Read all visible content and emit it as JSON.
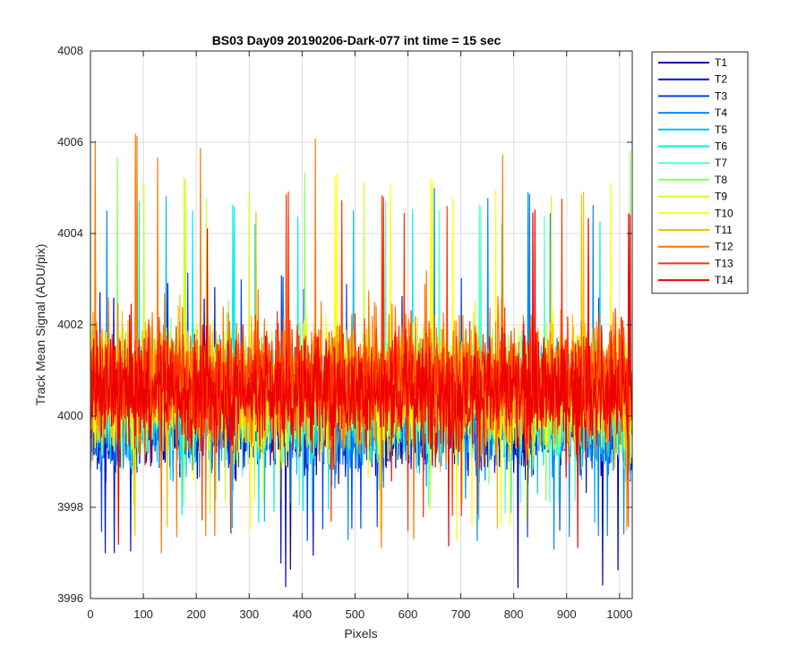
{
  "chart_data": {
    "type": "line",
    "title": "BS03 Day09 20190206-Dark-077 int time = 15 sec",
    "xlabel": "Pixels",
    "ylabel": "Track Mean Signal (ADU/pix)",
    "xlim": [
      0,
      1024
    ],
    "ylim": [
      3996,
      4008
    ],
    "xticks": [
      0,
      100,
      200,
      300,
      400,
      500,
      600,
      700,
      800,
      900,
      1000
    ],
    "yticks": [
      3996,
      3998,
      4000,
      4002,
      4004,
      4006,
      4008
    ],
    "grid": true,
    "legend_position": "outside-top-right",
    "n_points": 1024,
    "series": [
      {
        "name": "T1",
        "color": "#0000aa",
        "mean": 3999.9,
        "min": 3996.2,
        "max": 4003.0
      },
      {
        "name": "T2",
        "color": "#0010cc",
        "mean": 3999.9,
        "min": 3996.6,
        "max": 4003.0
      },
      {
        "name": "T3",
        "color": "#0044ee",
        "mean": 4000.0,
        "min": 3997.2,
        "max": 4003.2
      },
      {
        "name": "T4",
        "color": "#0088ff",
        "mean": 4000.1,
        "min": 3997.0,
        "max": 4005.1
      },
      {
        "name": "T5",
        "color": "#00bbff",
        "mean": 4000.2,
        "min": 3997.4,
        "max": 4005.1
      },
      {
        "name": "T6",
        "color": "#00eeee",
        "mean": 4000.3,
        "min": 3997.6,
        "max": 4004.8
      },
      {
        "name": "T7",
        "color": "#55ffcc",
        "mean": 4000.4,
        "min": 3997.8,
        "max": 4004.8
      },
      {
        "name": "T8",
        "color": "#88ff66",
        "mean": 4000.5,
        "min": 3997.9,
        "max": 4006.0
      },
      {
        "name": "T9",
        "color": "#ccff22",
        "mean": 4000.6,
        "min": 3997.8,
        "max": 4005.4
      },
      {
        "name": "T10",
        "color": "#ffff00",
        "mean": 4000.6,
        "min": 3997.2,
        "max": 4005.4
      },
      {
        "name": "T11",
        "color": "#ffbb00",
        "mean": 4000.7,
        "min": 3997.2,
        "max": 4005.0
      },
      {
        "name": "T12",
        "color": "#ff7700",
        "mean": 4000.8,
        "min": 3996.9,
        "max": 4006.4
      },
      {
        "name": "T13",
        "color": "#ff3300",
        "mean": 4000.8,
        "min": 3997.4,
        "max": 4005.0
      },
      {
        "name": "T14",
        "color": "#ee0000",
        "mean": 4000.5,
        "min": 3996.8,
        "max": 4004.6
      }
    ]
  }
}
